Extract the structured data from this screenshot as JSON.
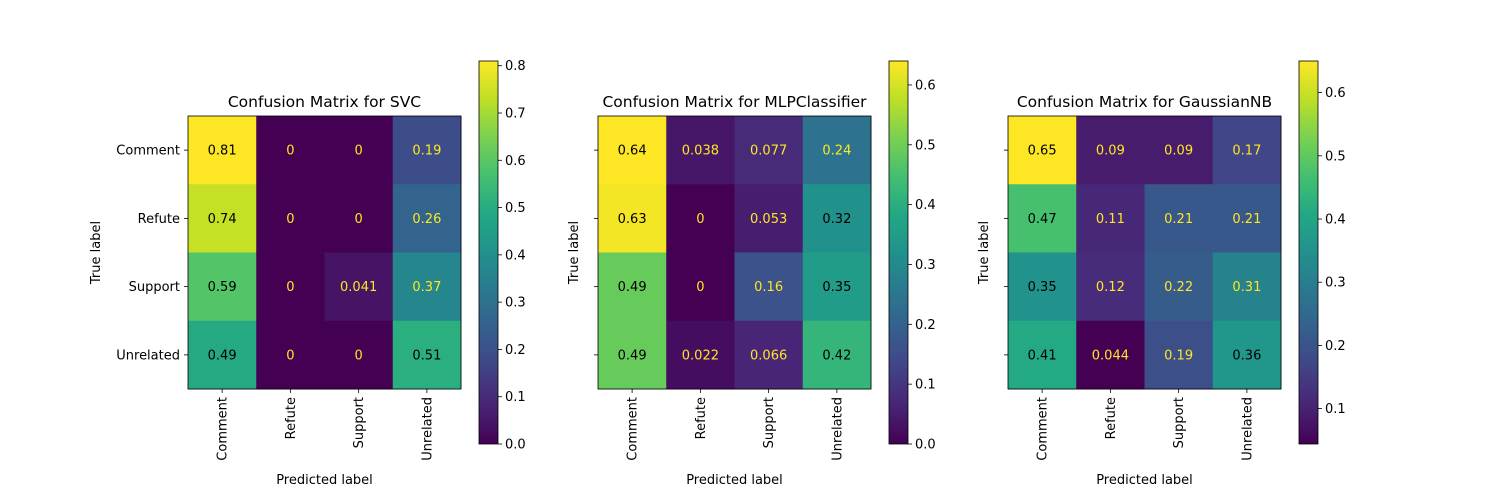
{
  "chart_data": [
    {
      "type": "heatmap",
      "title": "Confusion Matrix for SVC",
      "xlabel": "Predicted label",
      "ylabel": "True label",
      "categories": [
        "Comment",
        "Refute",
        "Support",
        "Unrelated"
      ],
      "values": [
        [
          0.81,
          0,
          0,
          0.19
        ],
        [
          0.74,
          0,
          0,
          0.26
        ],
        [
          0.59,
          0,
          0.041,
          0.37
        ],
        [
          0.49,
          0,
          0,
          0.51
        ]
      ],
      "cell_labels": [
        [
          "0.81",
          "0",
          "0",
          "0.19"
        ],
        [
          "0.74",
          "0",
          "0",
          "0.26"
        ],
        [
          "0.59",
          "0",
          "0.041",
          "0.37"
        ],
        [
          "0.49",
          "0",
          "0",
          "0.51"
        ]
      ],
      "show_yticklabels": true,
      "colorbar": {
        "min": 0,
        "max": 0.81,
        "ticks": [
          0,
          0.1,
          0.2,
          0.3,
          0.4,
          0.5,
          0.6,
          0.7,
          0.8
        ],
        "tick_labels": [
          "0.0",
          "0.1",
          "0.2",
          "0.3",
          "0.4",
          "0.5",
          "0.6",
          "0.7",
          "0.8"
        ]
      }
    },
    {
      "type": "heatmap",
      "title": "Confusion Matrix for MLPClassifier",
      "xlabel": "Predicted label",
      "ylabel": "True label",
      "categories": [
        "Comment",
        "Refute",
        "Support",
        "Unrelated"
      ],
      "values": [
        [
          0.64,
          0.038,
          0.077,
          0.24
        ],
        [
          0.63,
          0,
          0.053,
          0.32
        ],
        [
          0.49,
          0,
          0.16,
          0.35
        ],
        [
          0.49,
          0.022,
          0.066,
          0.42
        ]
      ],
      "cell_labels": [
        [
          "0.64",
          "0.038",
          "0.077",
          "0.24"
        ],
        [
          "0.63",
          "0",
          "0.053",
          "0.32"
        ],
        [
          "0.49",
          "0",
          "0.16",
          "0.35"
        ],
        [
          "0.49",
          "0.022",
          "0.066",
          "0.42"
        ]
      ],
      "show_yticklabels": false,
      "colorbar": {
        "min": 0,
        "max": 0.64,
        "ticks": [
          0,
          0.1,
          0.2,
          0.3,
          0.4,
          0.5,
          0.6
        ],
        "tick_labels": [
          "0.0",
          "0.1",
          "0.2",
          "0.3",
          "0.4",
          "0.5",
          "0.6"
        ]
      }
    },
    {
      "type": "heatmap",
      "title": "Confusion Matrix for GaussianNB",
      "xlabel": "Predicted label",
      "ylabel": "True label",
      "categories": [
        "Comment",
        "Refute",
        "Support",
        "Unrelated"
      ],
      "values": [
        [
          0.65,
          0.09,
          0.09,
          0.17
        ],
        [
          0.47,
          0.11,
          0.21,
          0.21
        ],
        [
          0.35,
          0.12,
          0.22,
          0.31
        ],
        [
          0.41,
          0.044,
          0.19,
          0.36
        ]
      ],
      "cell_labels": [
        [
          "0.65",
          "0.09",
          "0.09",
          "0.17"
        ],
        [
          "0.47",
          "0.11",
          "0.21",
          "0.21"
        ],
        [
          "0.35",
          "0.12",
          "0.22",
          "0.31"
        ],
        [
          "0.41",
          "0.044",
          "0.19",
          "0.36"
        ]
      ],
      "show_yticklabels": false,
      "colorbar": {
        "min": 0.044,
        "max": 0.65,
        "ticks": [
          0.1,
          0.2,
          0.3,
          0.4,
          0.5,
          0.6
        ],
        "tick_labels": [
          "0.1",
          "0.2",
          "0.3",
          "0.4",
          "0.5",
          "0.6"
        ]
      }
    }
  ],
  "colormap": "viridis",
  "colors": {
    "text_on_dark": "#fde725",
    "text_on_light": "#000000"
  }
}
